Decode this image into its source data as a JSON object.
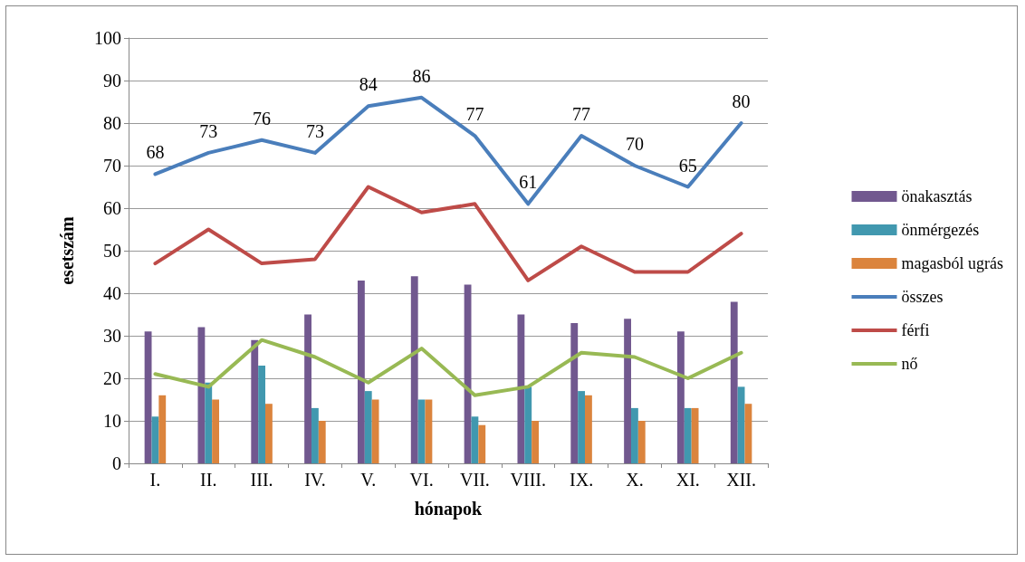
{
  "chart_data": {
    "type": "bar",
    "xlabel": "hónapok",
    "ylabel": "esetszám",
    "categories": [
      "I.",
      "II.",
      "III.",
      "IV.",
      "V.",
      "VI.",
      "VII.",
      "VIII.",
      "IX.",
      "X.",
      "XI.",
      "XII."
    ],
    "series": [
      {
        "name": "önakasztás",
        "color": "#71588f",
        "values": [
          31,
          32,
          29,
          35,
          43,
          44,
          42,
          35,
          33,
          34,
          31,
          38
        ]
      },
      {
        "name": "önmérgezés",
        "color": "#4198af",
        "values": [
          11,
          19,
          23,
          13,
          17,
          15,
          11,
          18,
          17,
          13,
          13,
          18
        ]
      },
      {
        "name": "magasból ugrás",
        "color": "#db843d",
        "values": [
          16,
          15,
          14,
          10,
          15,
          15,
          9,
          10,
          16,
          10,
          13,
          14
        ]
      },
      {
        "name": "összes",
        "type": "line",
        "color": "#4a7ebb",
        "values": [
          68,
          73,
          76,
          73,
          84,
          86,
          77,
          61,
          77,
          70,
          65,
          80
        ],
        "value_labels": [
          "68",
          "73",
          "76",
          "73",
          "84",
          "86",
          "77",
          "61",
          "77",
          "70",
          "65",
          "80"
        ]
      },
      {
        "name": "férfi",
        "type": "line",
        "color": "#be4b48",
        "values": [
          47,
          55,
          47,
          48,
          65,
          59,
          61,
          43,
          51,
          45,
          45,
          54
        ]
      },
      {
        "name": "nő",
        "type": "line",
        "color": "#98b954",
        "values": [
          21,
          18,
          29,
          25,
          19,
          27,
          16,
          18,
          26,
          25,
          20,
          26
        ]
      }
    ],
    "ylim": [
      0,
      100
    ],
    "yticks": [
      0,
      10,
      20,
      30,
      40,
      50,
      60,
      70,
      80,
      90,
      100
    ],
    "grid": "y",
    "legend": "right",
    "marker": "none",
    "line_style": "solid"
  }
}
